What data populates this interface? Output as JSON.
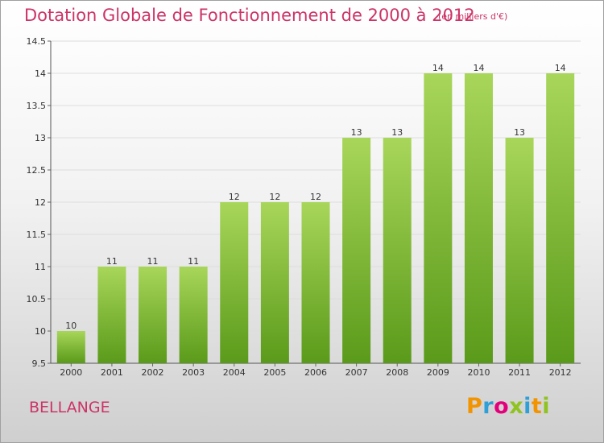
{
  "title": "Dotation Globale de Fonctionnement de 2000 à 2012",
  "subtitle": "(en milliers d'€)",
  "town": "BELLANGE",
  "logo": {
    "text": "Proxiti",
    "colors": [
      "#f29400",
      "#2f9fd8",
      "#e3007a",
      "#8fc31f",
      "#2f9fd8",
      "#f29400",
      "#8fc31f"
    ]
  },
  "colors": {
    "bar_top": "#a8d65a",
    "bar_bottom": "#5a9a1a",
    "title": "#cc3366"
  },
  "chart_data": {
    "type": "bar",
    "categories": [
      "2000",
      "2001",
      "2002",
      "2003",
      "2004",
      "2005",
      "2006",
      "2007",
      "2008",
      "2009",
      "2010",
      "2011",
      "2012"
    ],
    "values": [
      10,
      11,
      11,
      11,
      12,
      12,
      12,
      13,
      13,
      14,
      14,
      13,
      14
    ],
    "labels": [
      "10",
      "11",
      "11",
      "11",
      "12",
      "12",
      "12",
      "13",
      "13",
      "14",
      "14",
      "13",
      "14"
    ],
    "ylim": [
      9.5,
      14.5
    ],
    "yticks": [
      9.5,
      10,
      10.5,
      11,
      11.5,
      12,
      12.5,
      13,
      13.5,
      14,
      14.5
    ],
    "ytick_labels": [
      "9.5",
      "10",
      "10.5",
      "11",
      "11.5",
      "12",
      "12.5",
      "13",
      "13.5",
      "14",
      "14.5"
    ],
    "grid": true,
    "xlabel": "",
    "ylabel": ""
  }
}
